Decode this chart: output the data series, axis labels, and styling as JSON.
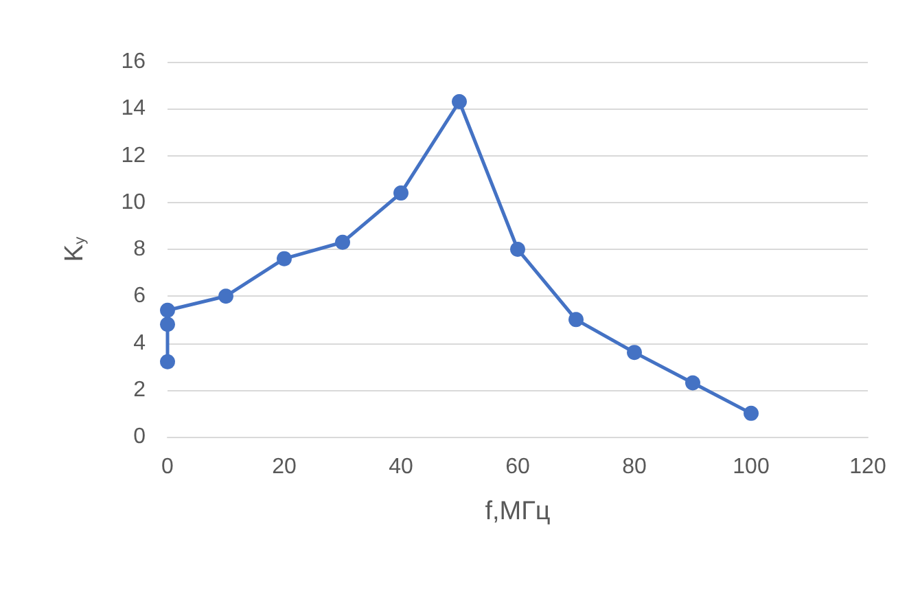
{
  "chart_data": {
    "type": "line",
    "xlabel": "f,МГц",
    "ylabel": "K$_{у}$",
    "x": [
      0,
      0,
      0,
      10,
      20,
      30,
      40,
      50,
      60,
      70,
      80,
      90,
      100
    ],
    "series": [
      {
        "color": "#4472c4",
        "values": [
          3.2,
          4.8,
          5.4,
          6.0,
          7.6,
          8.3,
          10.4,
          14.3,
          8.0,
          5.0,
          3.6,
          2.3,
          1.0
        ]
      }
    ],
    "xlim": [
      0,
      120
    ],
    "xticks": [
      0,
      20,
      40,
      60,
      80,
      100,
      120
    ],
    "ylim": [
      0,
      16
    ],
    "yticks": [
      0,
      2,
      4,
      6,
      8,
      10,
      12,
      14,
      16
    ],
    "grid": "y",
    "marker": "circle",
    "line_style": "solid"
  }
}
